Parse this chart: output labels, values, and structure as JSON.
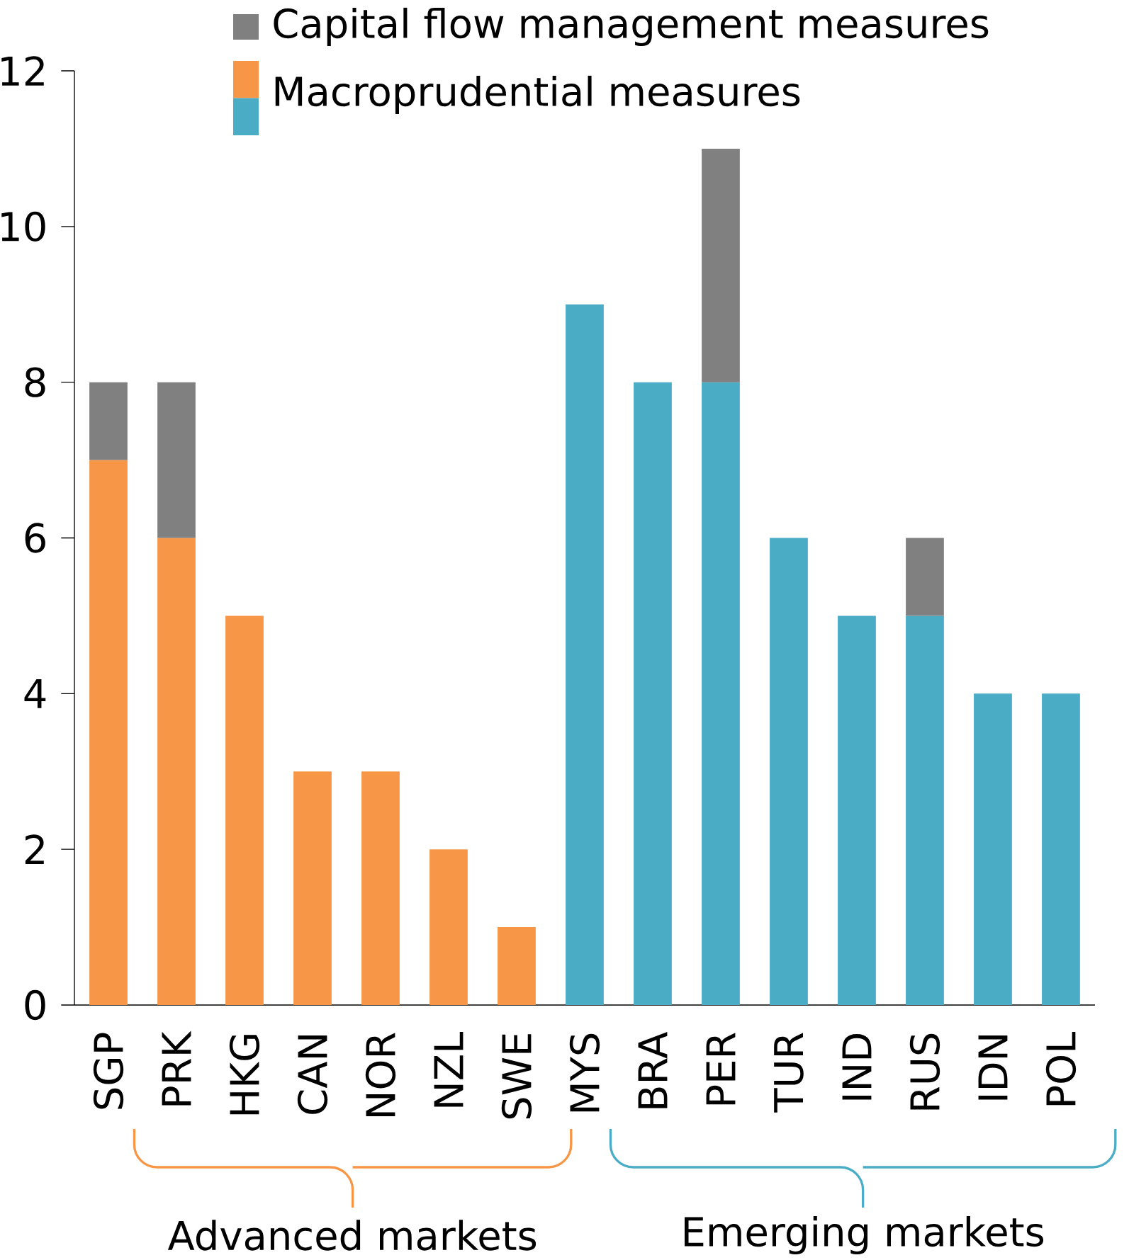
{
  "chart_data": {
    "type": "bar",
    "stacked": true,
    "categories": [
      "SGP",
      "PRK",
      "HKG",
      "CAN",
      "NOR",
      "NZL",
      "SWE",
      "MYS",
      "BRA",
      "PER",
      "TUR",
      "IND",
      "RUS",
      "IDN",
      "POL"
    ],
    "series": [
      {
        "name": "Macroprudential measures",
        "colors": [
          "#f79646",
          "#f79646",
          "#f79646",
          "#f79646",
          "#f79646",
          "#f79646",
          "#f79646",
          "#4bacc6",
          "#4bacc6",
          "#4bacc6",
          "#4bacc6",
          "#4bacc6",
          "#4bacc6",
          "#4bacc6",
          "#4bacc6"
        ],
        "values": [
          7,
          6,
          5,
          3,
          3,
          2,
          1,
          9,
          8,
          8,
          6,
          5,
          5,
          4,
          4
        ]
      },
      {
        "name": "Capital flow management measures",
        "color": "#808080",
        "values": [
          1,
          2,
          null,
          null,
          null,
          null,
          null,
          null,
          null,
          3,
          null,
          null,
          1,
          null,
          null
        ]
      }
    ],
    "ylim": [
      0,
      12
    ],
    "yticks": [
      0,
      2,
      4,
      6,
      8,
      10,
      12
    ],
    "grid": false,
    "legend": "top left",
    "annotations": [
      "Advanced markets",
      "Emerging markets"
    ]
  }
}
